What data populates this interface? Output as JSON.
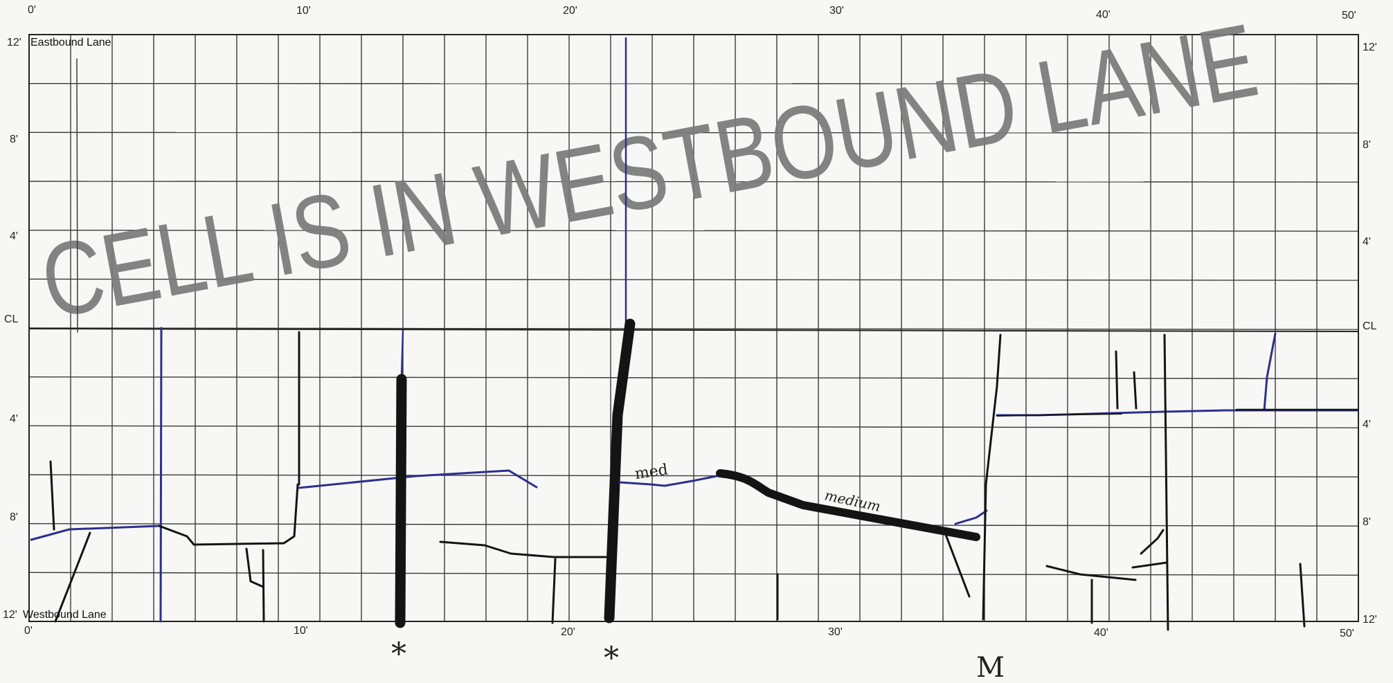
{
  "sheet": {
    "eastbound_label": "Eastbound Lane",
    "westbound_label": "Westbound Lane",
    "stamp_text": "CELL IS IN WESTBOUND LANE",
    "x_ticks": [
      "0'",
      "10'",
      "20'",
      "30'",
      "40'",
      "50'"
    ],
    "left_ticks_top": [
      "12'",
      "8'",
      "4'",
      "CL",
      "4'",
      "8'",
      "12'"
    ],
    "right_ticks": [
      "12'",
      "8'",
      "4'",
      "CL",
      "4'",
      "8'",
      "12'"
    ],
    "annotations": {
      "med": "med",
      "medium": "medium",
      "star": "*",
      "m_mark": "M"
    },
    "colors": {
      "grid": "#3a3a3a",
      "ink_black": "#141414",
      "ink_blue": "#2c2f8f",
      "stamp": "#7a7a7a"
    }
  }
}
